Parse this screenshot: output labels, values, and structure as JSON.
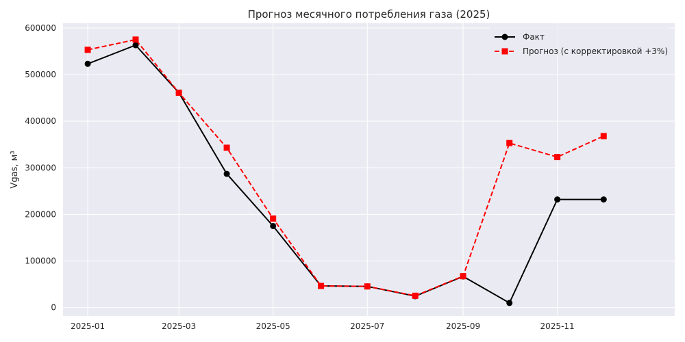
{
  "chart_data": {
    "type": "line",
    "title": "Прогноз месячного потребления газа (2025)",
    "xlabel": "",
    "ylabel": "Vgas, м³",
    "x": [
      "2025-01",
      "2025-02",
      "2025-03",
      "2025-04",
      "2025-05",
      "2025-06",
      "2025-07",
      "2025-08",
      "2025-09",
      "2025-10",
      "2025-11",
      "2025-12"
    ],
    "x_ticks": [
      "2025-01",
      "2025-03",
      "2025-05",
      "2025-07",
      "2025-09",
      "2025-11"
    ],
    "y_ticks": [
      0,
      100000,
      200000,
      300000,
      400000,
      500000,
      600000
    ],
    "ylim": [
      -18000,
      610000
    ],
    "xlim": [
      "2024-12-16",
      "2026-01-16"
    ],
    "grid": true,
    "legend_position": "top-right",
    "series": [
      {
        "name": "Факт",
        "color": "#000000",
        "marker": "circle",
        "line_style": "solid",
        "values": [
          523000,
          563000,
          461000,
          287000,
          175000,
          46500,
          45500,
          24500,
          67000,
          10000,
          232000,
          232000
        ]
      },
      {
        "name": "Прогноз (с корректировкой +3%)",
        "color": "#ff0000",
        "marker": "square",
        "line_style": "dashed",
        "values": [
          553000,
          575000,
          461000,
          343000,
          191000,
          46500,
          45500,
          25500,
          67500,
          353000,
          323000,
          368000
        ]
      }
    ]
  },
  "colors": {
    "plot_background": "#eaeaf2",
    "grid": "#ffffff",
    "text": "#262626"
  }
}
